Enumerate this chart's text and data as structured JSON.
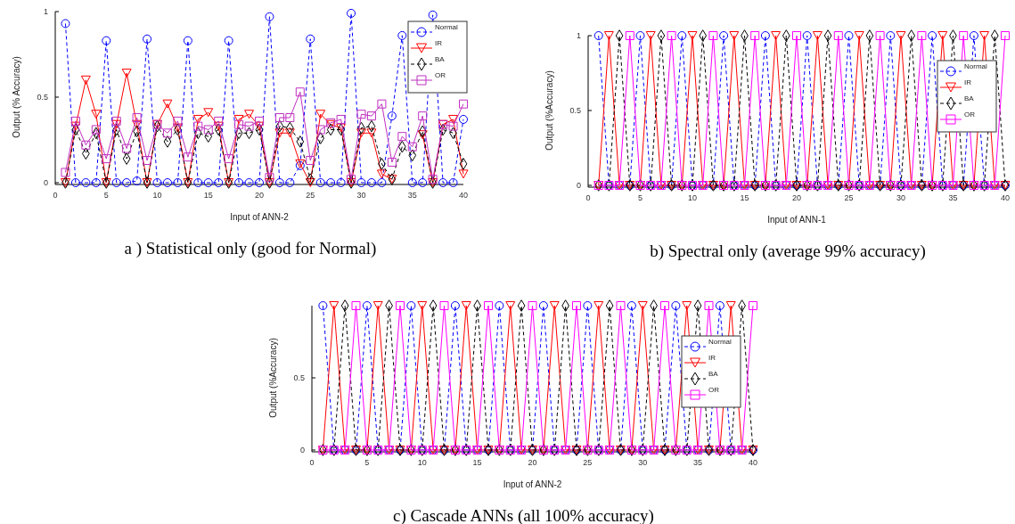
{
  "chart_data": [
    {
      "type": "line",
      "title": "a )  Statistical only (good for Normal)",
      "xlabel": "Input of ANN-2",
      "ylabel": "Output (% Accuracy)",
      "x": [
        1,
        2,
        3,
        4,
        5,
        6,
        7,
        8,
        9,
        10,
        11,
        12,
        13,
        14,
        15,
        16,
        17,
        18,
        19,
        20,
        21,
        22,
        23,
        24,
        25,
        26,
        27,
        28,
        29,
        30,
        31,
        32,
        33,
        34,
        35,
        36,
        37,
        38,
        39,
        40
      ],
      "xlim": [
        0,
        40
      ],
      "xticks": [
        0,
        5,
        10,
        15,
        20,
        25,
        30,
        35,
        40
      ],
      "ylim": [
        0,
        1
      ],
      "yticks": [
        0,
        0.5,
        1
      ],
      "legend": "top right",
      "grid": false,
      "series": [
        {
          "name": "Normal",
          "color": "#0000ff",
          "marker": "circle",
          "line_style": "dashed",
          "values": [
            0.93,
            0,
            0,
            0,
            0.83,
            0,
            0,
            0.01,
            0.84,
            0,
            0,
            0,
            0.83,
            0,
            0,
            0,
            0.83,
            0,
            0,
            0,
            0.97,
            0,
            0,
            0.1,
            0.84,
            0,
            0,
            0,
            0.99,
            0,
            0,
            0,
            0.39,
            0.86,
            0,
            0,
            0.98,
            0,
            0,
            0.37
          ]
        },
        {
          "name": "IR",
          "color": "#ff0000",
          "marker": "triangle",
          "line_style": "solid",
          "values": [
            0,
            0.33,
            0.6,
            0.4,
            0,
            0.34,
            0.64,
            0.34,
            0,
            0.34,
            0.46,
            0.32,
            0,
            0.37,
            0.41,
            0.33,
            0,
            0.37,
            0.4,
            0.33,
            0,
            0.29,
            0.29,
            0.11,
            0,
            0.4,
            0.34,
            0.32,
            0,
            0.29,
            0.29,
            0.05,
            0.02,
            null,
            null,
            0.28,
            0,
            0.34,
            0.37,
            0.05
          ]
        },
        {
          "name": "BA",
          "color": "#000000",
          "marker": "diamond",
          "line_style": "dashed",
          "values": [
            0,
            0.31,
            0.17,
            0.29,
            0,
            0.31,
            0.14,
            0.3,
            0,
            0.33,
            0.24,
            0.31,
            0,
            0.29,
            0.27,
            0.31,
            0,
            0.29,
            0.29,
            0.31,
            0,
            0.33,
            0.32,
            0.24,
            0.02,
            0.26,
            0.31,
            0.31,
            0,
            0.32,
            0.33,
            0.11,
            0.02,
            0.21,
            0.16,
            0.3,
            0,
            0.31,
            0.29,
            0.11
          ]
        },
        {
          "name": "OR",
          "color": "#c030c0",
          "marker": "square",
          "line_style": "solid",
          "values": [
            0.06,
            0.36,
            0.22,
            0.31,
            0.14,
            0.36,
            0.2,
            0.38,
            0.13,
            0.34,
            0.29,
            0.36,
            0.15,
            0.33,
            0.31,
            0.36,
            0.14,
            0.34,
            0.33,
            0.36,
            0.03,
            0.38,
            0.38,
            0.53,
            0.13,
            0.31,
            0.35,
            0.37,
            0.02,
            0.4,
            0.39,
            0.46,
            0.12,
            0.27,
            0.21,
            0.39,
            0.02,
            0.34,
            0.33,
            0.46
          ]
        }
      ]
    },
    {
      "type": "line",
      "title": "b)  Spectral only (average 99% accuracy)",
      "xlabel": "Input of ANN-1",
      "ylabel": "Output (%Accuracy)",
      "x": [
        1,
        2,
        3,
        4,
        5,
        6,
        7,
        8,
        9,
        10,
        11,
        12,
        13,
        14,
        15,
        16,
        17,
        18,
        19,
        20,
        21,
        22,
        23,
        24,
        25,
        26,
        27,
        28,
        29,
        30,
        31,
        32,
        33,
        34,
        35,
        36,
        37,
        38,
        39,
        40
      ],
      "xlim": [
        0,
        40
      ],
      "xticks": [
        0,
        5,
        10,
        15,
        20,
        25,
        30,
        35,
        40
      ],
      "ylim": [
        0,
        1
      ],
      "yticks": [
        0,
        0.5,
        1
      ],
      "legend": "top right",
      "grid": false,
      "series": [
        {
          "name": "Normal",
          "color": "#0000ff",
          "marker": "circle",
          "line_style": "dashed",
          "values": [
            1,
            0,
            0,
            0,
            1,
            0,
            0,
            0,
            1,
            0,
            0,
            0,
            1,
            0,
            0,
            0,
            1,
            0,
            0,
            0,
            1,
            0,
            0,
            0,
            1,
            0,
            0,
            0,
            1,
            0,
            0,
            0,
            1,
            0,
            0,
            0,
            1,
            0,
            0,
            0
          ]
        },
        {
          "name": "IR",
          "color": "#ff0000",
          "marker": "triangle",
          "line_style": "solid",
          "values": [
            0,
            1,
            0,
            0,
            0,
            1,
            0,
            0,
            0,
            1,
            0,
            0,
            0,
            1,
            0,
            0,
            0,
            1,
            0,
            0,
            0,
            1,
            0,
            0,
            0,
            1,
            0,
            0,
            0,
            1,
            0,
            0,
            0,
            1,
            0,
            0,
            0,
            1,
            0,
            0
          ]
        },
        {
          "name": "BA",
          "color": "#000000",
          "marker": "diamond",
          "line_style": "dashed",
          "values": [
            0,
            0,
            1,
            0,
            0,
            0,
            1,
            0,
            0,
            0,
            1,
            0,
            0,
            0,
            1,
            0,
            0,
            0,
            1,
            0,
            0,
            0,
            1,
            0,
            0,
            0,
            1,
            0,
            0,
            0,
            1,
            0,
            0,
            0,
            1,
            0,
            0,
            0,
            1,
            0
          ]
        },
        {
          "name": "OR",
          "color": "#ff00ff",
          "marker": "square",
          "line_style": "solid",
          "values": [
            0,
            0,
            0,
            1,
            0,
            0,
            0,
            1,
            0,
            0,
            0,
            1,
            0,
            0,
            0,
            1,
            0,
            0,
            0,
            1,
            0,
            0,
            0,
            1,
            0,
            0,
            0,
            1,
            0,
            0,
            0,
            1,
            0,
            0,
            0,
            1,
            0,
            0,
            0,
            1
          ]
        }
      ]
    },
    {
      "type": "line",
      "title": "c)  Cascade ANNs (all 100% accuracy)",
      "xlabel": "Input of ANN-2",
      "ylabel": "Output (%Accuracy)",
      "x": [
        1,
        2,
        3,
        4,
        5,
        6,
        7,
        8,
        9,
        10,
        11,
        12,
        13,
        14,
        15,
        16,
        17,
        18,
        19,
        20,
        21,
        22,
        23,
        24,
        25,
        26,
        27,
        28,
        29,
        30,
        31,
        32,
        33,
        34,
        35,
        36,
        37,
        38,
        39,
        40
      ],
      "xlim": [
        0,
        40
      ],
      "xticks": [
        0,
        5,
        10,
        15,
        20,
        25,
        30,
        35,
        40
      ],
      "ylim": [
        0,
        1
      ],
      "yticks": [
        0,
        0.5
      ],
      "legend": "top right",
      "grid": false,
      "series": [
        {
          "name": "Normal",
          "color": "#0000ff",
          "marker": "circle",
          "line_style": "dashed",
          "values": [
            1,
            0,
            0,
            0,
            1,
            0,
            0,
            0,
            1,
            0,
            0,
            0,
            1,
            0,
            0,
            0,
            1,
            0,
            0,
            0,
            1,
            0,
            0,
            0,
            1,
            0,
            0,
            0,
            1,
            0,
            0,
            0,
            1,
            0,
            0,
            0,
            1,
            0,
            0,
            0
          ]
        },
        {
          "name": "IR",
          "color": "#ff0000",
          "marker": "triangle",
          "line_style": "solid",
          "values": [
            0,
            1,
            0,
            0,
            0,
            1,
            0,
            0,
            0,
            1,
            0,
            0,
            0,
            1,
            0,
            0,
            0,
            1,
            0,
            0,
            0,
            1,
            0,
            0,
            0,
            1,
            0,
            0,
            0,
            1,
            0,
            0,
            0,
            1,
            0,
            0,
            0,
            1,
            0,
            0
          ]
        },
        {
          "name": "BA",
          "color": "#000000",
          "marker": "diamond",
          "line_style": "dashed",
          "values": [
            0,
            0,
            1,
            0,
            0,
            0,
            1,
            0,
            0,
            0,
            1,
            0,
            0,
            0,
            1,
            0,
            0,
            0,
            1,
            0,
            0,
            0,
            1,
            0,
            0,
            0,
            1,
            0,
            0,
            0,
            1,
            0,
            0,
            0,
            1,
            0,
            0,
            0,
            1,
            0
          ]
        },
        {
          "name": "OR",
          "color": "#ff00ff",
          "marker": "square",
          "line_style": "solid",
          "values": [
            0,
            0,
            0,
            1,
            0,
            0,
            0,
            1,
            0,
            0,
            0,
            1,
            0,
            0,
            0,
            1,
            0,
            0,
            0,
            1,
            0,
            0,
            0,
            1,
            0,
            0,
            0,
            1,
            0,
            0,
            0,
            1,
            0,
            0,
            0,
            1,
            0,
            0,
            0,
            1
          ]
        }
      ]
    }
  ]
}
